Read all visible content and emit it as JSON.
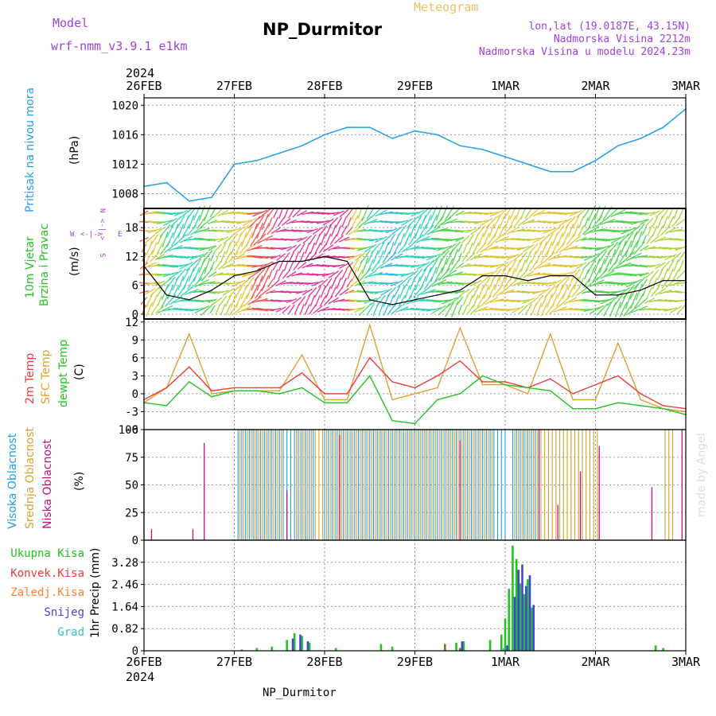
{
  "header": {
    "model_label": "Model",
    "model_name": "wrf-nmm_v3.9.1 e1km",
    "title": "NP_Durmitor",
    "subtitle": "Meteogram",
    "location": "lon,lat (19.0187E, 43.15N)",
    "elevation": "Nadmorska Visina 2212m",
    "elevation_model": "Nadmorska Visina u modelu 2024.23m",
    "footer": "NP_Durmitor",
    "watermark": "made by Angel"
  },
  "time_axis": {
    "year": "2024",
    "ticks": [
      "26FEB",
      "27FEB",
      "28FEB",
      "29FEB",
      "1MAR",
      "2MAR",
      "3MAR"
    ]
  },
  "panels": {
    "pressure": {
      "title": "Pritisak na nivou mora",
      "unit": "(hPa)",
      "ticks": [
        "1008",
        "1012",
        "1016",
        "1020"
      ]
    },
    "wind": {
      "title_line1": "10m Vjetar",
      "title_line2": "Brzina i Pravac",
      "unit": "(m/s)",
      "ticks": [
        "0",
        "6",
        "12",
        "18"
      ],
      "compass": {
        "w": "W",
        "e": "E",
        "n": "N",
        "s": "S",
        "arrow_h": "<-|->",
        "arrow_v": "<-|->"
      }
    },
    "temperature": {
      "label_2m": "2m Temp",
      "label_sfc": "SFC Temp",
      "label_dewpt": "dewpt Temp",
      "unit": "(C)",
      "ticks": [
        "-6",
        "-3",
        "0",
        "3",
        "6",
        "9",
        "12"
      ]
    },
    "clouds": {
      "label_high": "Visoka Oblacnost",
      "label_mid": "Srednja Oblacnost",
      "label_low": "Niska Oblacnost",
      "unit": "(%)",
      "ticks": [
        "0",
        "25",
        "50",
        "75",
        "100"
      ]
    },
    "precip": {
      "legend": [
        "Ukupna Kisa",
        "Konvek.Kisa",
        "Zaledj.Kisa",
        "Snijeg",
        "Grad"
      ],
      "unit": "1hr Precip (mm)",
      "ticks": [
        "0",
        "0.82",
        "1.64",
        "2.46",
        "3.28"
      ]
    }
  },
  "colors": {
    "pressure": "#22a0e6",
    "temp2m": "#ee3b3b",
    "sfc": "#e0a030",
    "dewpt": "#22c322",
    "high_cloud": "#1e9fe6",
    "mid_cloud": "#d9a030",
    "low_cloud": "#c0107a",
    "rain": "#22c322",
    "conv": "#ee3b3b",
    "freezing": "#ff8030",
    "snow": "#4444dd",
    "hail": "#30c0c0",
    "model_text": "#a040e0",
    "subtitle": "#f0c060"
  },
  "chart_data": {
    "type": "line",
    "x_start": "2024-02-26 00:00",
    "x_end": "2024-03-03 00:00",
    "x_unit": "hours",
    "series": [
      {
        "key": "pressure",
        "name": "Pritisak na nivou mora",
        "unit": "hPa",
        "ylim": [
          1006,
          1021
        ],
        "x": [
          0,
          6,
          12,
          18,
          24,
          30,
          36,
          42,
          48,
          54,
          60,
          66,
          72,
          78,
          84,
          90,
          96,
          102,
          108,
          114,
          120,
          126,
          132,
          138,
          144
        ],
        "y": [
          1009,
          1009.5,
          1007,
          1007.5,
          1012,
          1012.5,
          1013.5,
          1014.5,
          1016,
          1017,
          1017,
          1015.5,
          1016.5,
          1016,
          1014.5,
          1014,
          1013,
          1012,
          1011,
          1011,
          1012.5,
          1014.5,
          1015.5,
          1017,
          1019.5
        ]
      },
      {
        "key": "wind_speed",
        "name": "10m Vjetar",
        "unit": "m/s",
        "ylim": [
          -1,
          22
        ],
        "x": [
          0,
          6,
          12,
          18,
          24,
          30,
          36,
          42,
          48,
          54,
          60,
          66,
          72,
          78,
          84,
          90,
          96,
          102,
          108,
          114,
          120,
          126,
          132,
          138,
          144
        ],
        "y": [
          10,
          4,
          3,
          5,
          8,
          9,
          11,
          11,
          12,
          11,
          3,
          2,
          3,
          4,
          5,
          8,
          8,
          7,
          8,
          8,
          4,
          4,
          5,
          7,
          7
        ]
      },
      {
        "key": "temp2m",
        "name": "2m Temp",
        "unit": "C",
        "ylim": [
          -6,
          12.5
        ],
        "x": [
          0,
          6,
          12,
          18,
          24,
          30,
          36,
          42,
          48,
          54,
          60,
          66,
          72,
          78,
          84,
          90,
          96,
          102,
          108,
          114,
          120,
          126,
          132,
          138,
          144
        ],
        "y": [
          -1,
          1,
          4.5,
          0.5,
          1,
          1,
          1,
          3.5,
          0,
          0,
          6,
          2,
          1,
          3,
          5.5,
          2,
          2,
          1,
          2.5,
          0,
          1.5,
          3,
          0,
          -2,
          -2.5
        ]
      },
      {
        "key": "sfc",
        "name": "SFC Temp",
        "unit": "C",
        "ylim": [
          -6,
          12.5
        ],
        "x": [
          0,
          6,
          12,
          18,
          24,
          30,
          36,
          42,
          48,
          54,
          60,
          66,
          72,
          78,
          84,
          90,
          96,
          102,
          108,
          114,
          120,
          126,
          132,
          138,
          144
        ],
        "y": [
          -1.5,
          1,
          10,
          0,
          0.5,
          0.5,
          0.5,
          6.5,
          -1,
          -1,
          11.5,
          -1,
          0,
          1,
          11,
          1.5,
          1.5,
          0,
          10,
          -1,
          -1,
          8.5,
          -1,
          -2.5,
          -3
        ]
      },
      {
        "key": "dewpt",
        "name": "dewpt Temp",
        "unit": "C",
        "ylim": [
          -6,
          12.5
        ],
        "x": [
          0,
          6,
          12,
          18,
          24,
          30,
          36,
          42,
          48,
          54,
          60,
          66,
          72,
          78,
          84,
          90,
          96,
          102,
          108,
          114,
          120,
          126,
          132,
          138,
          144
        ],
        "y": [
          -1.5,
          -2,
          2,
          -0.5,
          0.5,
          0.5,
          0,
          1,
          -1.5,
          -1.5,
          3,
          -4.5,
          -5,
          -1,
          0,
          3,
          1.5,
          1,
          0.5,
          -2.5,
          -2.5,
          -1.5,
          -2,
          -2.5,
          -3.5
        ]
      }
    ],
    "clouds": {
      "unit": "%",
      "ylim": [
        0,
        100
      ],
      "high_segments": [
        [
          25,
          45
        ],
        [
          48,
          96
        ],
        [
          98,
          105
        ]
      ],
      "mid_segments": [
        [
          25,
          36
        ],
        [
          40,
          92
        ],
        [
          98,
          120
        ],
        [
          138,
          140
        ]
      ],
      "low_spikes": [
        [
          0,
          100
        ],
        [
          2,
          10
        ],
        [
          13,
          10
        ],
        [
          16,
          88
        ],
        [
          38,
          45
        ],
        [
          52,
          95
        ],
        [
          84,
          90
        ],
        [
          105,
          100
        ],
        [
          110,
          32
        ],
        [
          116,
          62
        ],
        [
          121,
          85
        ],
        [
          135,
          48
        ],
        [
          143,
          100
        ]
      ],
      "high_level": 100,
      "mid_level": 100
    },
    "precip": {
      "unit": "mm",
      "ylim": [
        0,
        4.1
      ],
      "rain": [
        [
          26,
          0.05
        ],
        [
          30,
          0.1
        ],
        [
          34,
          0.15
        ],
        [
          38,
          0.4
        ],
        [
          40,
          0.65
        ],
        [
          42,
          0.55
        ],
        [
          44,
          0.3
        ],
        [
          51,
          0.1
        ],
        [
          63,
          0.25
        ],
        [
          66,
          0.15
        ],
        [
          83,
          0.3
        ],
        [
          85,
          0.35
        ],
        [
          92,
          0.4
        ],
        [
          95,
          0.6
        ],
        [
          96,
          1.2
        ],
        [
          97,
          2.3
        ],
        [
          98,
          3.9
        ],
        [
          99,
          3.4
        ],
        [
          100,
          2.5
        ],
        [
          101,
          2.1
        ],
        [
          102,
          2.65
        ],
        [
          103,
          1.6
        ],
        [
          136,
          0.2
        ],
        [
          138,
          0.1
        ]
      ],
      "snow": [
        [
          39,
          0.45
        ],
        [
          41,
          0.6
        ],
        [
          43,
          0.35
        ],
        [
          84,
          0.35
        ],
        [
          96,
          0.2
        ],
        [
          98,
          2.0
        ],
        [
          99,
          3.0
        ],
        [
          100,
          3.2
        ],
        [
          101,
          2.4
        ],
        [
          102,
          2.8
        ],
        [
          103,
          1.7
        ]
      ],
      "freezing": [
        [
          80,
          0.25
        ],
        [
          84,
          0.1
        ]
      ],
      "hail": [
        [
          96,
          0.1
        ]
      ]
    }
  }
}
